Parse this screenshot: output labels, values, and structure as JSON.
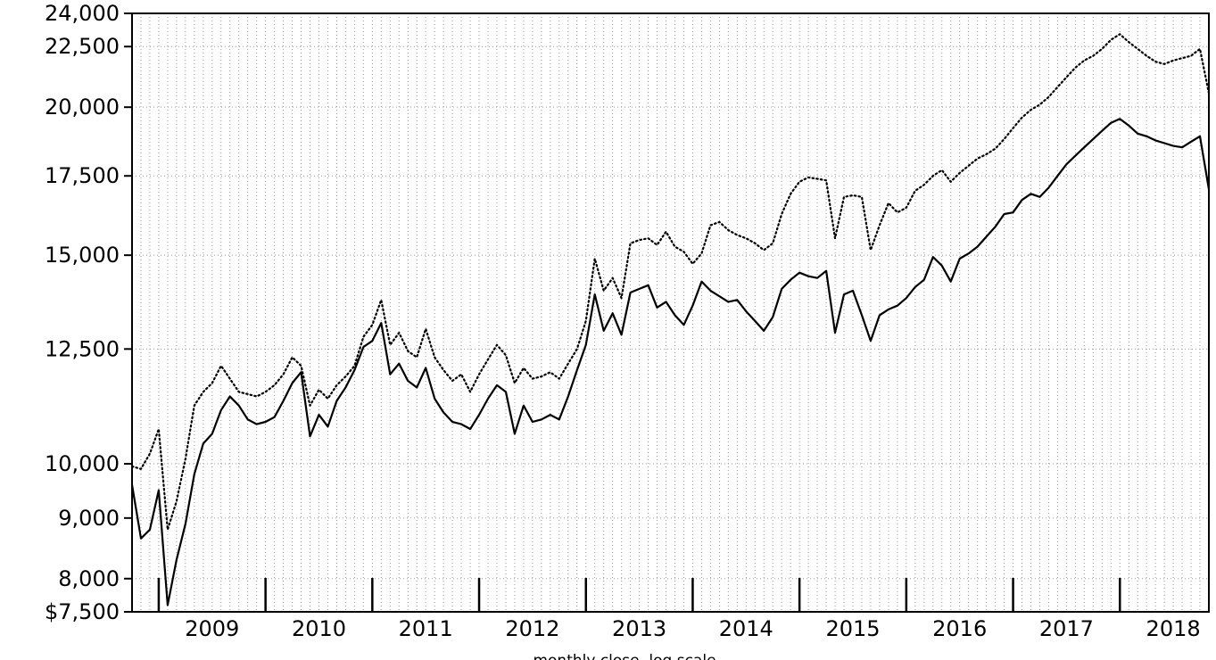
{
  "page": {
    "background": "#ffffff"
  },
  "caption": {
    "text": "monthly close, log scale"
  },
  "chart_data": {
    "type": "line",
    "title": "",
    "y_scale": "log",
    "ylim": [
      7500,
      24000
    ],
    "y_ticks": [
      24000,
      22500,
      20000,
      17500,
      15000,
      12500,
      10000,
      9000,
      8000,
      7500
    ],
    "y_tick_labels": [
      "24,000",
      "22,500",
      "20,000",
      "17,500",
      "15,000",
      "12,500",
      "10,000",
      "9,000",
      "8,000",
      "$7,500"
    ],
    "x_year_labels": [
      "2009",
      "2010",
      "2011",
      "2012",
      "2013",
      "2014",
      "2015",
      "2016",
      "2017",
      "2018"
    ],
    "x_start": "2008-10",
    "x_end": "2018-11",
    "x_interval": "monthly",
    "x_first_january_index": 3,
    "grid": {
      "vertical": "monthly, dotted",
      "horizontal": "at labeled y ticks, dotted",
      "color": "#9a9a9a"
    },
    "line_color": "#000000",
    "series": [
      {
        "name": "solid",
        "style": "solid",
        "color": "#000000",
        "values": [
          9600,
          8650,
          8800,
          9500,
          7600,
          8300,
          8900,
          9800,
          10400,
          10600,
          11100,
          11400,
          11200,
          10900,
          10800,
          10850,
          10950,
          11300,
          11700,
          11950,
          10550,
          11000,
          10750,
          11300,
          11600,
          12000,
          12550,
          12700,
          13150,
          11900,
          12150,
          11750,
          11600,
          12050,
          11350,
          11050,
          10850,
          10800,
          10700,
          11000,
          11350,
          11650,
          11500,
          10600,
          11200,
          10850,
          10900,
          11000,
          10900,
          11400,
          12000,
          12600,
          13900,
          12950,
          13400,
          12850,
          13950,
          14050,
          14150,
          13550,
          13700,
          13350,
          13100,
          13600,
          14250,
          14000,
          13850,
          13700,
          13750,
          13450,
          13200,
          12950,
          13300,
          14050,
          14300,
          14500,
          14400,
          14350,
          14550,
          12900,
          13900,
          14000,
          13350,
          12700,
          13350,
          13500,
          13600,
          13800,
          14100,
          14300,
          14950,
          14700,
          14250,
          14900,
          15050,
          15250,
          15550,
          15850,
          16250,
          16300,
          16700,
          16900,
          16800,
          17100,
          17500,
          17900,
          18200,
          18500,
          18800,
          19100,
          19400,
          19550,
          19300,
          19000,
          18900,
          18750,
          18650,
          18550,
          18500,
          18700,
          18900,
          17050
        ]
      },
      {
        "name": "dotted",
        "style": "dotted",
        "color": "#000000",
        "values": [
          9950,
          9900,
          10200,
          10700,
          8800,
          9300,
          10100,
          11200,
          11500,
          11700,
          12100,
          11800,
          11500,
          11450,
          11400,
          11500,
          11650,
          11900,
          12300,
          12100,
          11200,
          11550,
          11350,
          11650,
          11850,
          12100,
          12800,
          13100,
          13750,
          12600,
          12900,
          12450,
          12300,
          13000,
          12300,
          12000,
          11750,
          11900,
          11500,
          11900,
          12250,
          12600,
          12350,
          11700,
          12050,
          11800,
          11850,
          11950,
          11800,
          12150,
          12500,
          13200,
          14900,
          14000,
          14350,
          13800,
          15350,
          15450,
          15500,
          15300,
          15700,
          15250,
          15100,
          14750,
          15050,
          15900,
          16000,
          15750,
          15600,
          15500,
          15350,
          15150,
          15350,
          16250,
          16900,
          17300,
          17450,
          17400,
          17350,
          15500,
          16800,
          16850,
          16800,
          15150,
          15900,
          16600,
          16300,
          16450,
          17000,
          17200,
          17500,
          17700,
          17300,
          17600,
          17850,
          18100,
          18250,
          18450,
          18800,
          19200,
          19600,
          19900,
          20100,
          20400,
          20800,
          21200,
          21600,
          21900,
          22100,
          22400,
          22800,
          23050,
          22700,
          22400,
          22100,
          21850,
          21750,
          21900,
          22000,
          22100,
          22400,
          20550
        ]
      }
    ]
  }
}
